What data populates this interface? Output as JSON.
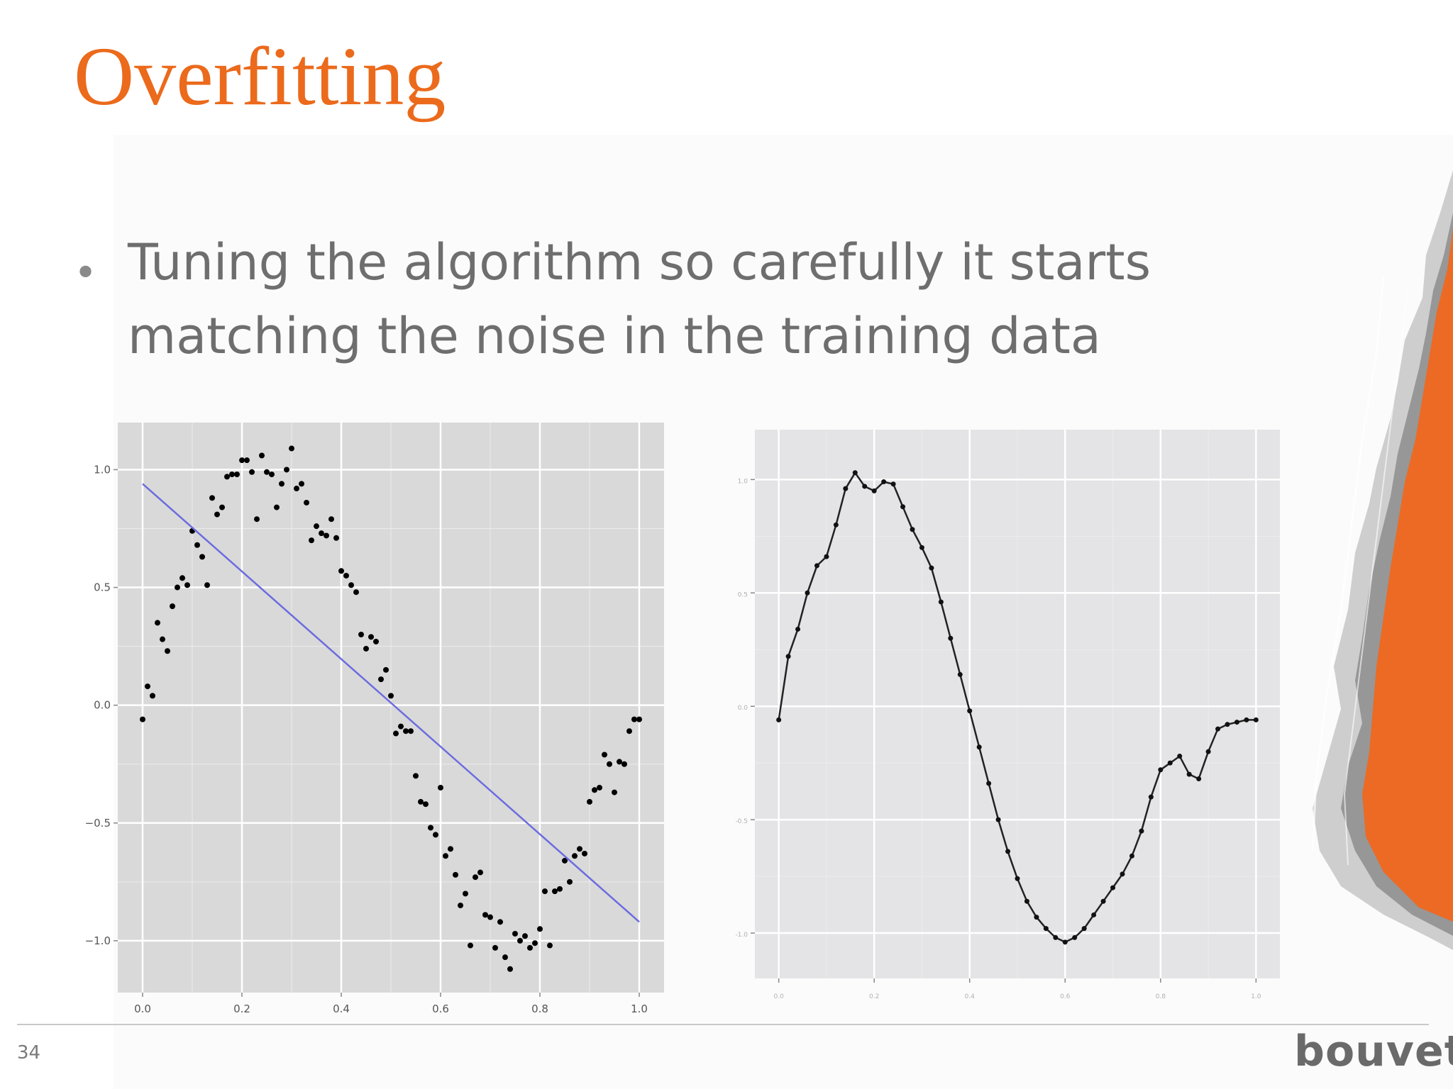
{
  "slide": {
    "title": "Overfitting",
    "bullet": {
      "line1": "Tuning the algorithm so carefully it starts",
      "line2": "matching the noise in the training data"
    },
    "page_number": "34",
    "logo_text": "bouvet",
    "colors": {
      "title": "#eb6a1c",
      "bullet_text": "#6e6e6e",
      "accent_orange": "#ec6a24",
      "plot_panel": "#d9d9d9",
      "fit_line": "#6c6ce0",
      "points": "#000000"
    }
  },
  "chart_data": [
    {
      "type": "scatter",
      "title": "",
      "xlabel": "",
      "ylabel": "",
      "grid": true,
      "xlim": [
        -0.05,
        1.05
      ],
      "ylim": [
        -1.22,
        1.2
      ],
      "x_ticks": [
        "0.0",
        "0.2",
        "0.4",
        "0.6",
        "0.8",
        "1.0"
      ],
      "y_ticks": [
        "1.0",
        "0.5",
        "0.0",
        "−0.5",
        "−1.0"
      ],
      "x_tick_values": [
        0,
        0.2,
        0.4,
        0.6,
        0.8,
        1.0
      ],
      "y_tick_values": [
        1.0,
        0.5,
        0.0,
        -0.5,
        -1.0
      ],
      "series": [
        {
          "kind": "points",
          "x": [
            0.0,
            0.01,
            0.02,
            0.03,
            0.04,
            0.05,
            0.06,
            0.07,
            0.08,
            0.09,
            0.1,
            0.11,
            0.12,
            0.13,
            0.14,
            0.15,
            0.16,
            0.17,
            0.18,
            0.19,
            0.2,
            0.21,
            0.22,
            0.23,
            0.24,
            0.25,
            0.26,
            0.27,
            0.28,
            0.29,
            0.3,
            0.31,
            0.32,
            0.33,
            0.34,
            0.35,
            0.36,
            0.37,
            0.38,
            0.39,
            0.4,
            0.41,
            0.42,
            0.43,
            0.44,
            0.45,
            0.46,
            0.47,
            0.48,
            0.49,
            0.5,
            0.51,
            0.52,
            0.53,
            0.54,
            0.55,
            0.56,
            0.57,
            0.58,
            0.59,
            0.6,
            0.61,
            0.62,
            0.63,
            0.64,
            0.65,
            0.66,
            0.67,
            0.68,
            0.69,
            0.7,
            0.71,
            0.72,
            0.73,
            0.74,
            0.75,
            0.76,
            0.77,
            0.78,
            0.79,
            0.8,
            0.81,
            0.82,
            0.83,
            0.84,
            0.85,
            0.86,
            0.87,
            0.88,
            0.89,
            0.9,
            0.91,
            0.92,
            0.93,
            0.94,
            0.95,
            0.96,
            0.97,
            0.98,
            0.99,
            1.0
          ],
          "y": [
            -0.06,
            0.08,
            0.04,
            0.35,
            0.28,
            0.23,
            0.42,
            0.5,
            0.54,
            0.51,
            0.74,
            0.68,
            0.63,
            0.51,
            0.88,
            0.81,
            0.84,
            0.97,
            0.98,
            0.98,
            1.04,
            1.04,
            0.99,
            0.79,
            1.06,
            0.99,
            0.98,
            0.84,
            0.94,
            1.0,
            1.09,
            0.92,
            0.94,
            0.86,
            0.7,
            0.76,
            0.73,
            0.72,
            0.79,
            0.71,
            0.57,
            0.55,
            0.51,
            0.48,
            0.3,
            0.24,
            0.29,
            0.27,
            0.11,
            0.15,
            0.04,
            -0.12,
            -0.09,
            -0.11,
            -0.11,
            -0.3,
            -0.41,
            -0.42,
            -0.52,
            -0.55,
            -0.35,
            -0.64,
            -0.61,
            -0.72,
            -0.85,
            -0.8,
            -1.02,
            -0.73,
            -0.71,
            -0.89,
            -0.9,
            -1.03,
            -0.92,
            -1.07,
            -1.12,
            -0.97,
            -1.0,
            -0.98,
            -1.03,
            -1.01,
            -0.95,
            -0.79,
            -1.02,
            -0.79,
            -0.78,
            -0.66,
            -0.75,
            -0.64,
            -0.61,
            -0.63,
            -0.41,
            -0.36,
            -0.35,
            -0.21,
            -0.25,
            -0.37,
            -0.24,
            -0.25,
            -0.11,
            -0.06,
            -0.06
          ]
        },
        {
          "kind": "line",
          "x": [
            0.0,
            1.0
          ],
          "y": [
            0.94,
            -0.92
          ]
        }
      ]
    },
    {
      "type": "line",
      "title": "",
      "xlabel": "",
      "ylabel": "",
      "grid": true,
      "xlim": [
        -0.05,
        1.05
      ],
      "ylim": [
        -1.2,
        1.22
      ],
      "x_ticks": [
        "0.0",
        "0.2",
        "0.4",
        "0.6",
        "0.8",
        "1.0"
      ],
      "y_ticks": [
        "1.0",
        "0.5",
        "0.0",
        "-0.5",
        "-1.0"
      ],
      "x_tick_values": [
        0,
        0.2,
        0.4,
        0.6,
        0.8,
        1.0
      ],
      "y_tick_values": [
        1.0,
        0.5,
        0.0,
        -0.5,
        -1.0
      ],
      "series": [
        {
          "kind": "line-with-points",
          "x": [
            0.0,
            0.02,
            0.04,
            0.06,
            0.08,
            0.1,
            0.12,
            0.14,
            0.16,
            0.18,
            0.2,
            0.22,
            0.24,
            0.26,
            0.28,
            0.3,
            0.32,
            0.34,
            0.36,
            0.38,
            0.4,
            0.42,
            0.44,
            0.46,
            0.48,
            0.5,
            0.52,
            0.54,
            0.56,
            0.58,
            0.6,
            0.62,
            0.64,
            0.66,
            0.68,
            0.7,
            0.72,
            0.74,
            0.76,
            0.78,
            0.8,
            0.82,
            0.84,
            0.86,
            0.88,
            0.9,
            0.92,
            0.94,
            0.96,
            0.98,
            1.0
          ],
          "y": [
            -0.06,
            0.22,
            0.34,
            0.5,
            0.62,
            0.66,
            0.8,
            0.96,
            1.03,
            0.97,
            0.95,
            0.99,
            0.98,
            0.88,
            0.78,
            0.7,
            0.61,
            0.46,
            0.3,
            0.14,
            -0.02,
            -0.18,
            -0.34,
            -0.5,
            -0.64,
            -0.76,
            -0.86,
            -0.93,
            -0.98,
            -1.02,
            -1.04,
            -1.02,
            -0.98,
            -0.92,
            -0.86,
            -0.8,
            -0.74,
            -0.66,
            -0.55,
            -0.4,
            -0.28,
            -0.25,
            -0.22,
            -0.3,
            -0.32,
            -0.2,
            -0.1,
            -0.08,
            -0.07,
            -0.06,
            -0.06
          ]
        }
      ]
    }
  ]
}
